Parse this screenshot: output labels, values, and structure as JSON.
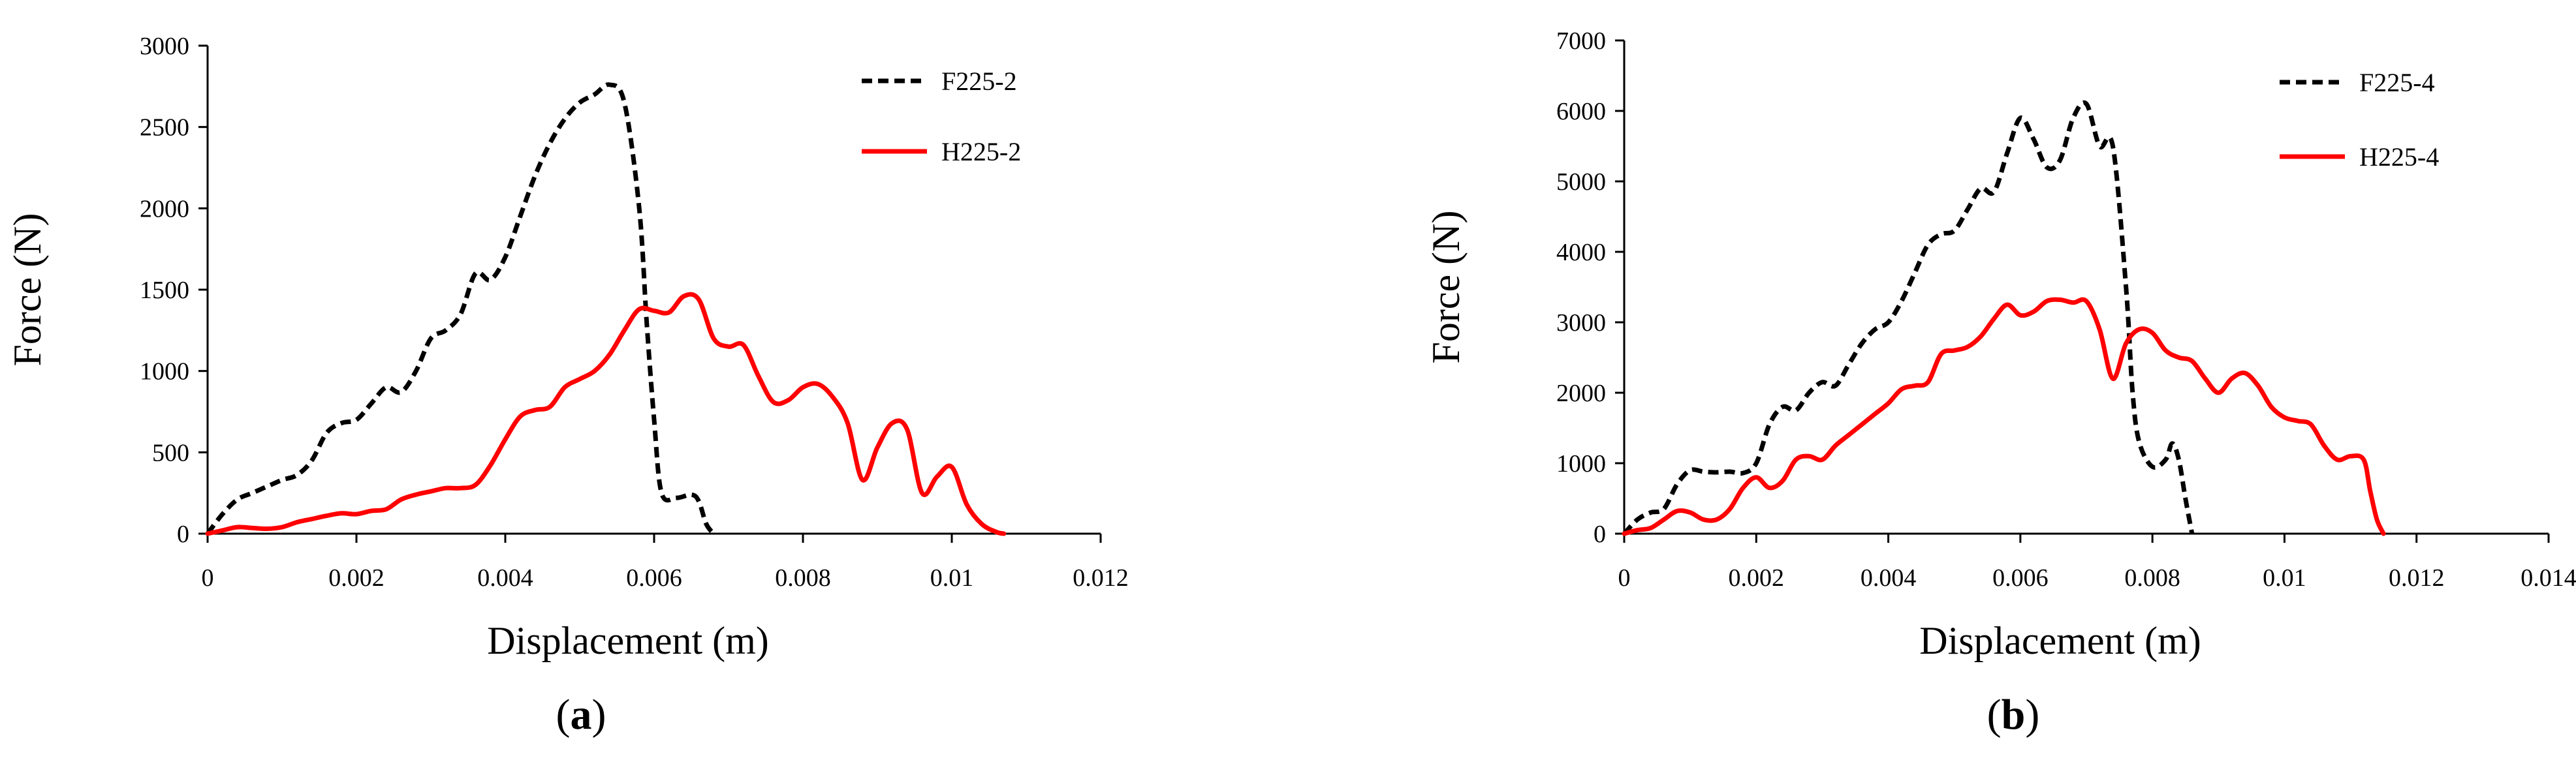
{
  "chart_data": [
    {
      "type": "line",
      "panel_label": "a",
      "xlabel": "Displacement (m)",
      "ylabel": "Force (N)",
      "xlim": [
        0,
        0.012
      ],
      "ylim": [
        0,
        3000
      ],
      "x_ticks": [
        "0",
        "0.002",
        "0.004",
        "0.006",
        "0.008",
        "0.01",
        "0.012"
      ],
      "y_ticks": [
        "0",
        "500",
        "1000",
        "1500",
        "2000",
        "2500",
        "3000"
      ],
      "grid": false,
      "legend_position": "top-right",
      "series": [
        {
          "name": "F225-2",
          "color": "#000000",
          "dash": "dashed",
          "points": [
            [
              0,
              0
            ],
            [
              0.0002,
              120
            ],
            [
              0.0004,
              210
            ],
            [
              0.0006,
              250
            ],
            [
              0.0008,
              290
            ],
            [
              0.001,
              330
            ],
            [
              0.0012,
              360
            ],
            [
              0.0014,
              450
            ],
            [
              0.0016,
              620
            ],
            [
              0.0018,
              680
            ],
            [
              0.002,
              700
            ],
            [
              0.0022,
              800
            ],
            [
              0.0024,
              900
            ],
            [
              0.0026,
              870
            ],
            [
              0.0028,
              1000
            ],
            [
              0.003,
              1200
            ],
            [
              0.0032,
              1250
            ],
            [
              0.0034,
              1350
            ],
            [
              0.0036,
              1600
            ],
            [
              0.0038,
              1560
            ],
            [
              0.004,
              1700
            ],
            [
              0.0042,
              1950
            ],
            [
              0.0044,
              2200
            ],
            [
              0.0046,
              2400
            ],
            [
              0.0048,
              2550
            ],
            [
              0.005,
              2650
            ],
            [
              0.0052,
              2700
            ],
            [
              0.0054,
              2760
            ],
            [
              0.0056,
              2650
            ],
            [
              0.0058,
              2000
            ],
            [
              0.0059,
              1300
            ],
            [
              0.006,
              700
            ],
            [
              0.0061,
              250
            ],
            [
              0.0063,
              220
            ],
            [
              0.0065,
              240
            ],
            [
              0.0066,
              200
            ],
            [
              0.0067,
              60
            ],
            [
              0.0068,
              0
            ]
          ]
        },
        {
          "name": "H225-2",
          "color": "#ff0000",
          "dash": "solid",
          "points": [
            [
              0,
              0
            ],
            [
              0.0002,
              20
            ],
            [
              0.0004,
              40
            ],
            [
              0.0006,
              35
            ],
            [
              0.0008,
              30
            ],
            [
              0.001,
              40
            ],
            [
              0.0012,
              70
            ],
            [
              0.0014,
              90
            ],
            [
              0.0016,
              110
            ],
            [
              0.0018,
              125
            ],
            [
              0.002,
              120
            ],
            [
              0.0022,
              140
            ],
            [
              0.0024,
              150
            ],
            [
              0.0026,
              210
            ],
            [
              0.0028,
              240
            ],
            [
              0.003,
              260
            ],
            [
              0.0032,
              280
            ],
            [
              0.0034,
              280
            ],
            [
              0.0036,
              300
            ],
            [
              0.0038,
              420
            ],
            [
              0.004,
              580
            ],
            [
              0.0042,
              720
            ],
            [
              0.0044,
              760
            ],
            [
              0.0046,
              780
            ],
            [
              0.0048,
              900
            ],
            [
              0.005,
              950
            ],
            [
              0.0052,
              1000
            ],
            [
              0.0054,
              1100
            ],
            [
              0.0056,
              1250
            ],
            [
              0.0058,
              1380
            ],
            [
              0.006,
              1370
            ],
            [
              0.0062,
              1360
            ],
            [
              0.0064,
              1460
            ],
            [
              0.0066,
              1440
            ],
            [
              0.0068,
              1200
            ],
            [
              0.007,
              1150
            ],
            [
              0.0072,
              1160
            ],
            [
              0.0074,
              970
            ],
            [
              0.0076,
              810
            ],
            [
              0.0078,
              820
            ],
            [
              0.008,
              900
            ],
            [
              0.0082,
              920
            ],
            [
              0.0084,
              840
            ],
            [
              0.0086,
              680
            ],
            [
              0.0088,
              330
            ],
            [
              0.009,
              530
            ],
            [
              0.0092,
              680
            ],
            [
              0.0094,
              640
            ],
            [
              0.0096,
              250
            ],
            [
              0.0098,
              350
            ],
            [
              0.01,
              410
            ],
            [
              0.0102,
              180
            ],
            [
              0.0104,
              60
            ],
            [
              0.0106,
              10
            ],
            [
              0.0107,
              0
            ]
          ]
        }
      ]
    },
    {
      "type": "line",
      "panel_label": "b",
      "xlabel": "Displacement (m)",
      "ylabel": "Force (N)",
      "xlim": [
        0,
        0.014
      ],
      "ylim": [
        0,
        7000
      ],
      "x_ticks": [
        "0",
        "0.002",
        "0.004",
        "0.006",
        "0.008",
        "0.01",
        "0.012",
        "0.014"
      ],
      "y_ticks": [
        "0",
        "1000",
        "2000",
        "3000",
        "4000",
        "5000",
        "6000",
        "7000"
      ],
      "grid": false,
      "legend_position": "top-right",
      "series": [
        {
          "name": "F225-4",
          "color": "#000000",
          "dash": "dashed",
          "points": [
            [
              0,
              0
            ],
            [
              0.0002,
              200
            ],
            [
              0.0004,
              300
            ],
            [
              0.0006,
              350
            ],
            [
              0.0008,
              700
            ],
            [
              0.001,
              900
            ],
            [
              0.0012,
              880
            ],
            [
              0.0014,
              870
            ],
            [
              0.0016,
              880
            ],
            [
              0.0018,
              860
            ],
            [
              0.002,
              1000
            ],
            [
              0.0022,
              1550
            ],
            [
              0.0024,
              1800
            ],
            [
              0.0026,
              1750
            ],
            [
              0.0028,
              2000
            ],
            [
              0.003,
              2150
            ],
            [
              0.0032,
              2100
            ],
            [
              0.0034,
              2400
            ],
            [
              0.0036,
              2700
            ],
            [
              0.0038,
              2900
            ],
            [
              0.004,
              3000
            ],
            [
              0.0042,
              3300
            ],
            [
              0.0044,
              3700
            ],
            [
              0.0046,
              4100
            ],
            [
              0.0048,
              4250
            ],
            [
              0.005,
              4300
            ],
            [
              0.0052,
              4600
            ],
            [
              0.0054,
              4900
            ],
            [
              0.0056,
              4850
            ],
            [
              0.0058,
              5400
            ],
            [
              0.006,
              5900
            ],
            [
              0.0062,
              5600
            ],
            [
              0.0064,
              5200
            ],
            [
              0.0066,
              5300
            ],
            [
              0.0068,
              5900
            ],
            [
              0.007,
              6100
            ],
            [
              0.0072,
              5500
            ],
            [
              0.0074,
              5500
            ],
            [
              0.0076,
              3500
            ],
            [
              0.0077,
              2000
            ],
            [
              0.0078,
              1300
            ],
            [
              0.008,
              950
            ],
            [
              0.0082,
              1050
            ],
            [
              0.0083,
              1280
            ],
            [
              0.0084,
              1050
            ],
            [
              0.0085,
              500
            ],
            [
              0.0086,
              0
            ]
          ]
        },
        {
          "name": "H225-4",
          "color": "#ff0000",
          "dash": "solid",
          "points": [
            [
              0,
              0
            ],
            [
              0.0002,
              50
            ],
            [
              0.0004,
              80
            ],
            [
              0.0006,
              200
            ],
            [
              0.0008,
              320
            ],
            [
              0.001,
              300
            ],
            [
              0.0012,
              200
            ],
            [
              0.0014,
              200
            ],
            [
              0.0016,
              350
            ],
            [
              0.0018,
              650
            ],
            [
              0.002,
              800
            ],
            [
              0.0022,
              650
            ],
            [
              0.0024,
              750
            ],
            [
              0.0026,
              1050
            ],
            [
              0.0028,
              1100
            ],
            [
              0.003,
              1050
            ],
            [
              0.0032,
              1250
            ],
            [
              0.0034,
              1400
            ],
            [
              0.0036,
              1550
            ],
            [
              0.0038,
              1700
            ],
            [
              0.004,
              1850
            ],
            [
              0.0042,
              2050
            ],
            [
              0.0044,
              2100
            ],
            [
              0.0046,
              2150
            ],
            [
              0.0048,
              2550
            ],
            [
              0.005,
              2600
            ],
            [
              0.0052,
              2650
            ],
            [
              0.0054,
              2800
            ],
            [
              0.0056,
              3050
            ],
            [
              0.0058,
              3250
            ],
            [
              0.006,
              3100
            ],
            [
              0.0062,
              3150
            ],
            [
              0.0064,
              3300
            ],
            [
              0.0066,
              3320
            ],
            [
              0.0068,
              3280
            ],
            [
              0.007,
              3300
            ],
            [
              0.0072,
              2900
            ],
            [
              0.0074,
              2200
            ],
            [
              0.0076,
              2700
            ],
            [
              0.0078,
              2900
            ],
            [
              0.008,
              2850
            ],
            [
              0.0082,
              2600
            ],
            [
              0.0084,
              2500
            ],
            [
              0.0086,
              2450
            ],
            [
              0.0088,
              2200
            ],
            [
              0.009,
              2000
            ],
            [
              0.0092,
              2200
            ],
            [
              0.0094,
              2280
            ],
            [
              0.0096,
              2100
            ],
            [
              0.0098,
              1800
            ],
            [
              0.01,
              1650
            ],
            [
              0.0102,
              1600
            ],
            [
              0.0104,
              1550
            ],
            [
              0.0106,
              1250
            ],
            [
              0.0108,
              1050
            ],
            [
              0.011,
              1100
            ],
            [
              0.0112,
              1050
            ],
            [
              0.0113,
              600
            ],
            [
              0.0114,
              200
            ],
            [
              0.0115,
              0
            ]
          ]
        }
      ]
    }
  ]
}
